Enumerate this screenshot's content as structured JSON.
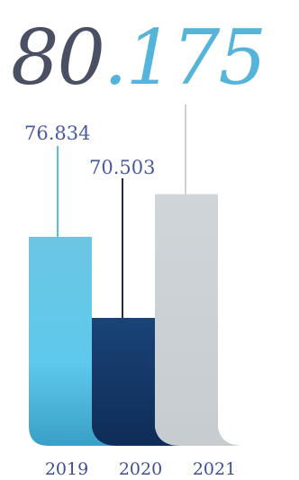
{
  "chart_data": {
    "type": "bar",
    "categories": [
      "2019",
      "2020",
      "2021"
    ],
    "values": [
      76.834,
      70.503,
      80.175
    ],
    "data_labels": [
      "76.834",
      "70.503",
      ""
    ],
    "headline": {
      "integer_part": "80",
      "decimal_part": ".175"
    },
    "series_colors": [
      "#5bbfe0",
      "#163e72",
      "#cdd2d5"
    ],
    "headline_colors": {
      "integer_part": "#4a4f63",
      "decimal_part": "#55b4da"
    },
    "title": "",
    "xlabel": "",
    "ylabel": "",
    "legend": "none",
    "grid": false
  }
}
